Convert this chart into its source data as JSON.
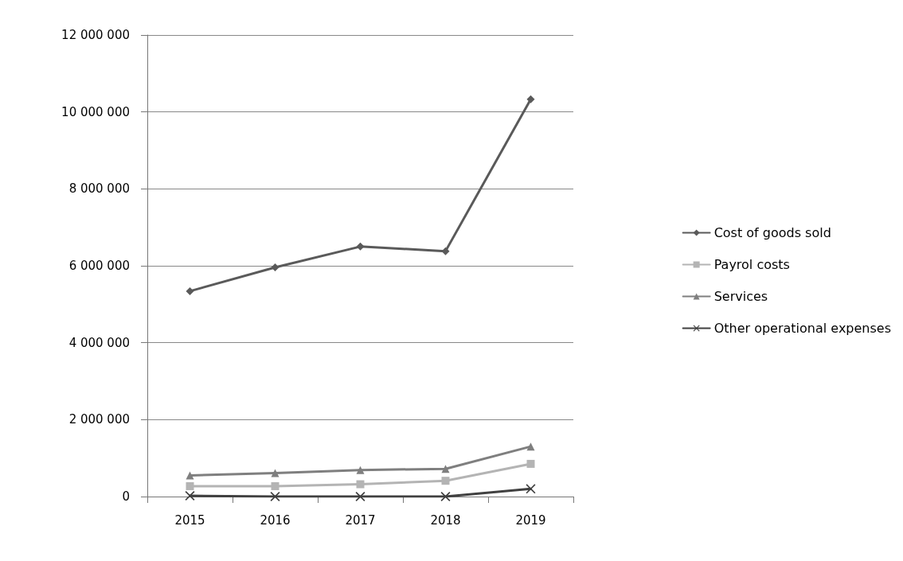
{
  "chart_data": {
    "type": "line",
    "categories": [
      "2015",
      "2016",
      "2017",
      "2018",
      "2019"
    ],
    "series": [
      {
        "name": "Cost of goods sold",
        "color": "#5a5a5a",
        "marker": "diamond",
        "values": [
          5340000,
          5960000,
          6500000,
          6380000,
          10330000
        ]
      },
      {
        "name": "Payrol costs",
        "color": "#b4b4b4",
        "marker": "square",
        "values": [
          270000,
          270000,
          320000,
          410000,
          850000
        ]
      },
      {
        "name": "Services",
        "color": "#7f7f7f",
        "marker": "triangle",
        "values": [
          550000,
          610000,
          690000,
          720000,
          1300000
        ]
      },
      {
        "name": "Other operational expenses",
        "color": "#404040",
        "marker": "cross",
        "values": [
          20000,
          0,
          0,
          0,
          200000
        ]
      }
    ],
    "ylim": [
      0,
      12000000
    ],
    "yticks": [
      {
        "value": 0,
        "label": "0"
      },
      {
        "value": 2000000,
        "label": "2 000 000"
      },
      {
        "value": 4000000,
        "label": "4 000 000"
      },
      {
        "value": 6000000,
        "label": "6 000 000"
      },
      {
        "value": 8000000,
        "label": "8 000 000"
      },
      {
        "value": 10000000,
        "label": "10 000 000"
      },
      {
        "value": 12000000,
        "label": "12 000 000"
      }
    ],
    "grid": "y",
    "legend": "right"
  }
}
